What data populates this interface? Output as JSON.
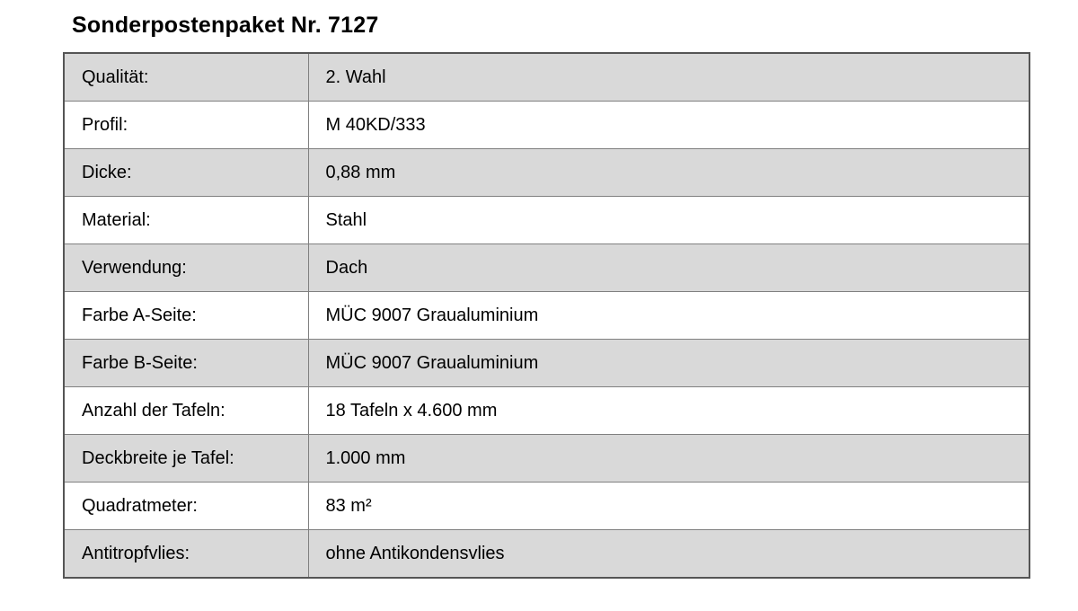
{
  "title": "Sonderpostenpaket Nr. 7127",
  "colors": {
    "row_shaded": "#d9d9d9",
    "row_plain": "#ffffff",
    "border_outer": "#555555",
    "border_inner": "#808080",
    "text": "#000000"
  },
  "spec_table": {
    "rows": [
      {
        "label": "Qualität:",
        "value": "2. Wahl",
        "shaded": true
      },
      {
        "label": "Profil:",
        "value": "M 40KD/333",
        "shaded": false
      },
      {
        "label": "Dicke:",
        "value": "0,88 mm",
        "shaded": true
      },
      {
        "label": "Material:",
        "value": "Stahl",
        "shaded": false
      },
      {
        "label": "Verwendung:",
        "value": "Dach",
        "shaded": true
      },
      {
        "label": "Farbe A-Seite:",
        "value": "MÜC 9007 Graualuminium",
        "shaded": false
      },
      {
        "label": "Farbe B-Seite:",
        "value": "MÜC 9007 Graualuminium",
        "shaded": true
      },
      {
        "label": "Anzahl der Tafeln:",
        "value": "18 Tafeln x 4.600 mm",
        "shaded": false
      },
      {
        "label": "Deckbreite je Tafel:",
        "value": "1.000 mm",
        "shaded": true
      },
      {
        "label": "Quadratmeter:",
        "value": "83 m²",
        "shaded": false
      },
      {
        "label": "Antitropfvlies:",
        "value": "ohne Antikondensvlies",
        "shaded": true
      }
    ]
  }
}
